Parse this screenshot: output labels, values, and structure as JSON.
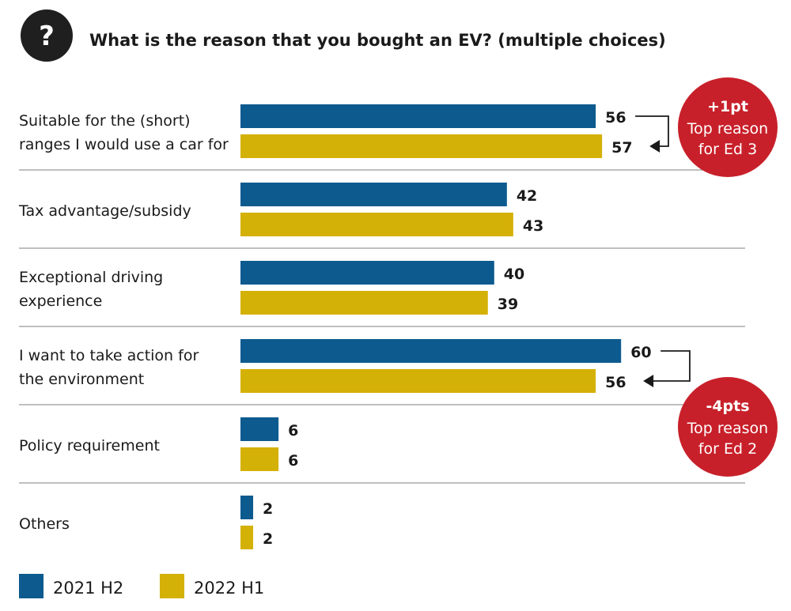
{
  "question_icon": "question-mark-icon",
  "chart_data": {
    "type": "bar",
    "orientation": "horizontal",
    "title": "What is the reason that you bought an EV? (multiple choices)",
    "categories": [
      [
        "Suitable for the (short)",
        "ranges I would use a car for"
      ],
      [
        "Tax advantage/subsidy"
      ],
      [
        "Exceptional driving",
        "experience"
      ],
      [
        "I want to take action for",
        "the environment"
      ],
      [
        "Policy requirement"
      ],
      [
        "Others"
      ]
    ],
    "series": [
      {
        "name": "2021 H2",
        "color": "#0d5a8f",
        "values": [
          56,
          42,
          40,
          60,
          6,
          2
        ]
      },
      {
        "name": "2022 H1",
        "color": "#d4b106",
        "values": [
          57,
          43,
          39,
          56,
          6,
          2
        ]
      }
    ],
    "legend": "bottom-left",
    "grid": false,
    "annotations": [
      {
        "category_index": 0,
        "headline": "+1pt",
        "lines": [
          "Top reason",
          "for Ed 3"
        ],
        "color": "#c8202a"
      },
      {
        "category_index": 3,
        "headline": "-4pts",
        "lines": [
          "Top reason",
          "for Ed 2"
        ],
        "color": "#c8202a"
      }
    ]
  }
}
